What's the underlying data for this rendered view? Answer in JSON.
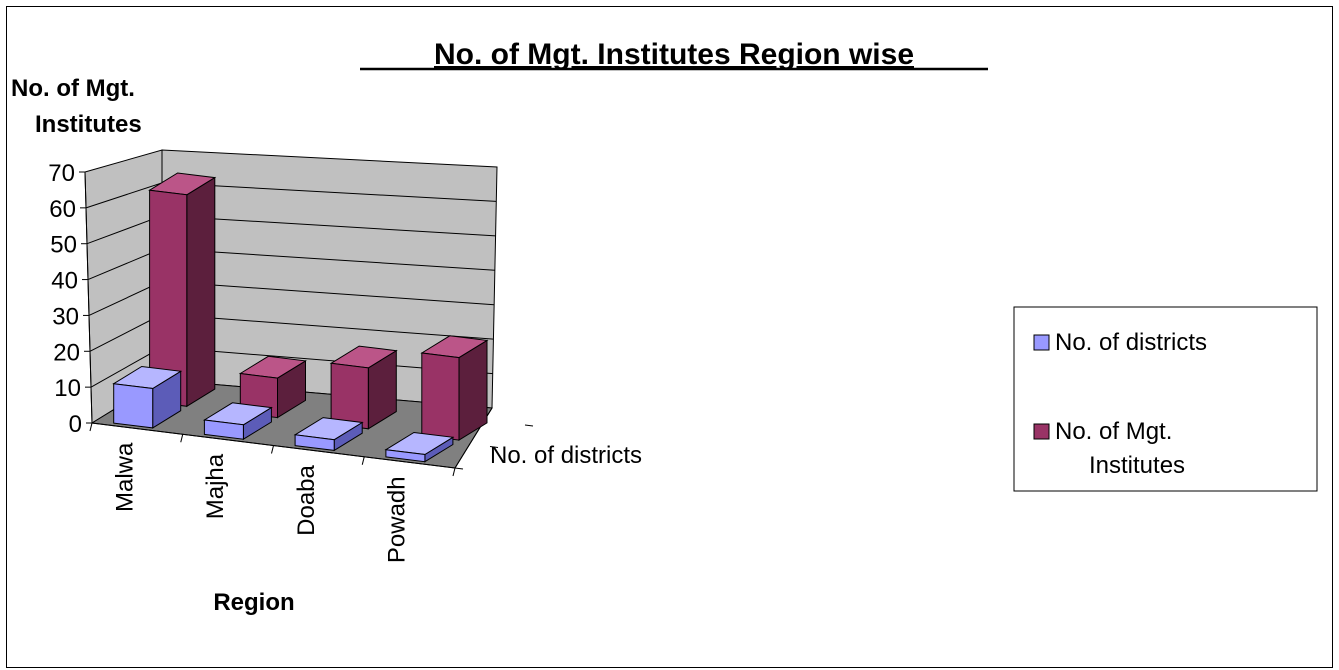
{
  "chart_data": {
    "type": "bar",
    "title": "No. of Mgt. Institutes Region wise",
    "ylabel": "No. of Mgt. Institutes",
    "xlabel": "Region",
    "depth_label": "No. of districts",
    "categories": [
      "Malwa",
      "Majha",
      "Doaba",
      "Powadh"
    ],
    "yticks": [
      "0",
      "10",
      "20",
      "30",
      "40",
      "50",
      "60",
      "70"
    ],
    "ylim": [
      0,
      70
    ],
    "series": [
      {
        "name": "No. of districts",
        "values": [
          11,
          4,
          3,
          2
        ]
      },
      {
        "name": "No. of Mgt. Institutes",
        "values": [
          59,
          11,
          17,
          23
        ]
      }
    ],
    "legend": {
      "position": "right",
      "items": [
        "No. of districts",
        "No. of Mgt.",
        "Institutes"
      ]
    },
    "colors": {
      "districts_front": "#9999ff",
      "districts_top": "#b6b6ff",
      "districts_side": "#5c5cb8",
      "institutes_front": "#993366",
      "institutes_top": "#bb5588",
      "institutes_side": "#5c1f3d",
      "wall": "#c0c0c0",
      "floor": "#808080"
    }
  }
}
